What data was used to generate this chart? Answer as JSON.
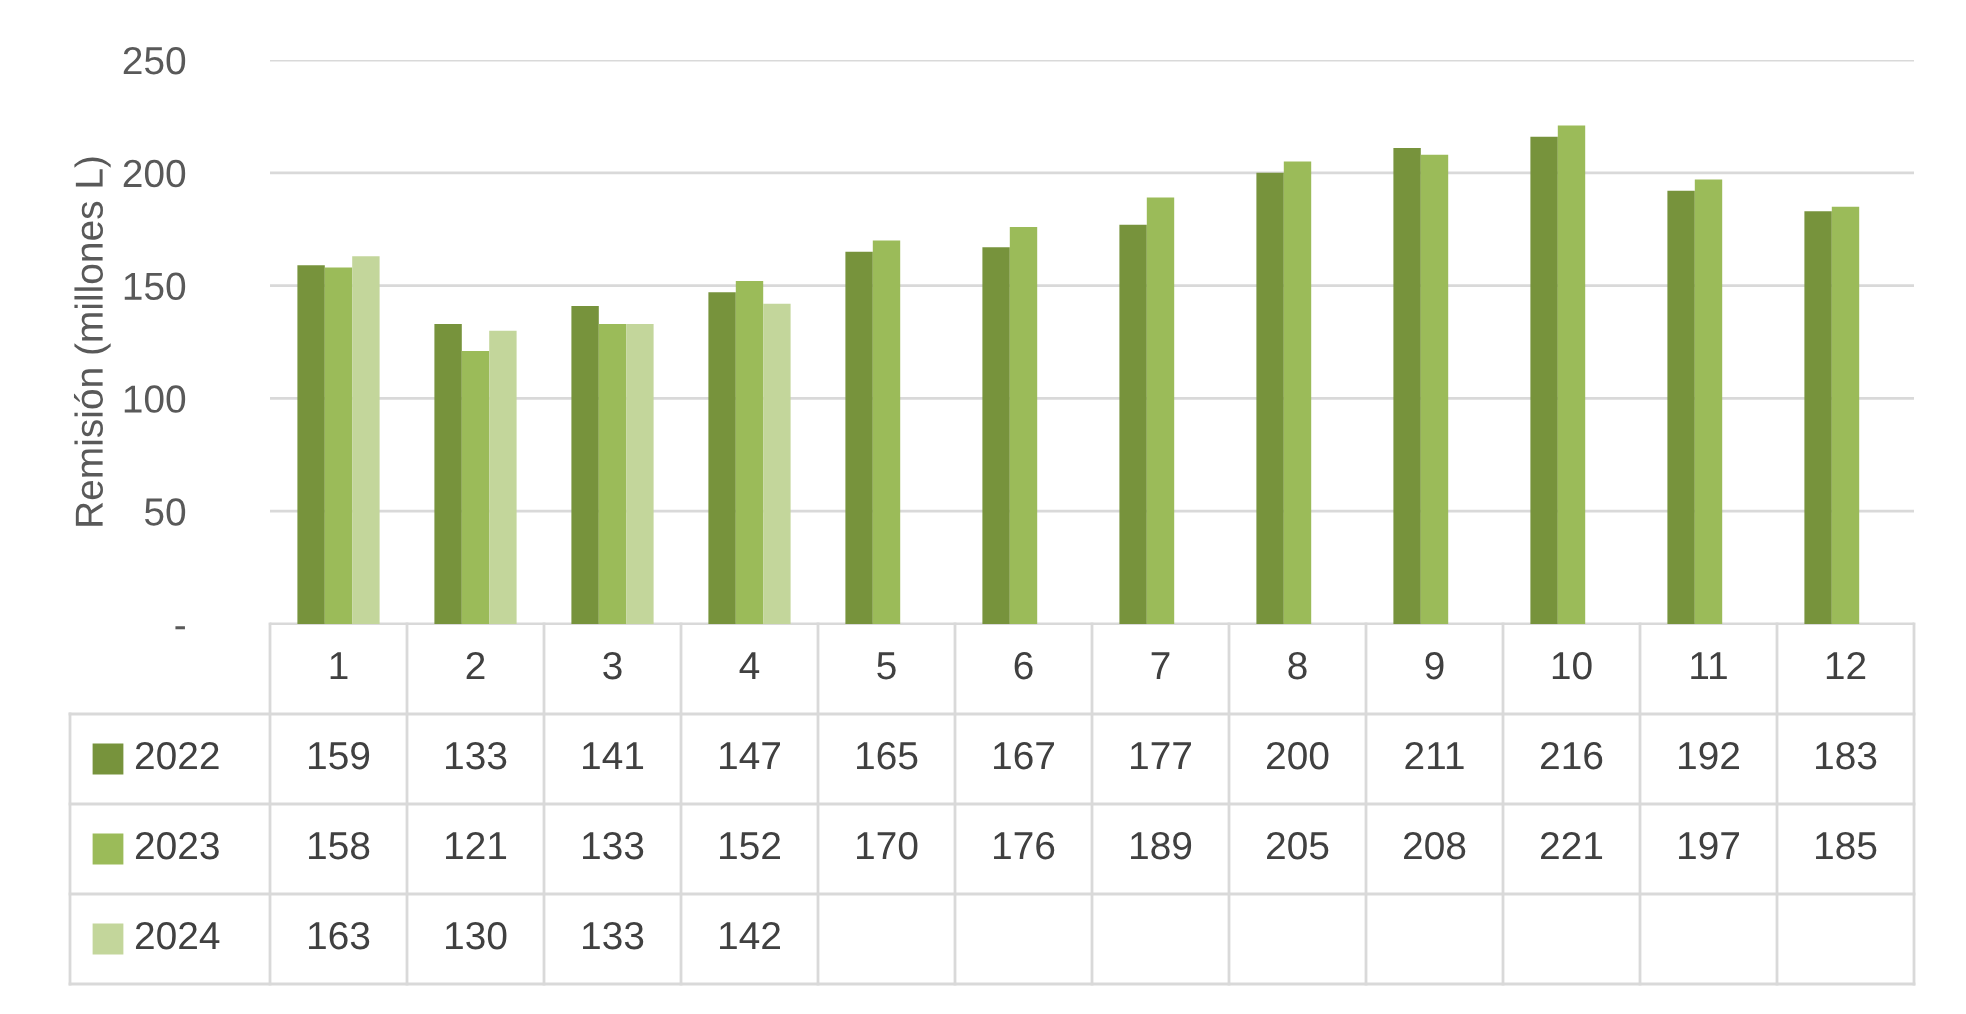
{
  "chart_data": {
    "type": "bar",
    "ylabel": "Remisión (millones L)",
    "categories": [
      "1",
      "2",
      "3",
      "4",
      "5",
      "6",
      "7",
      "8",
      "9",
      "10",
      "11",
      "12"
    ],
    "series": [
      {
        "name": "2022",
        "color": "#77933c",
        "values": [
          159,
          133,
          141,
          147,
          165,
          167,
          177,
          200,
          211,
          216,
          192,
          183
        ]
      },
      {
        "name": "2023",
        "color": "#9bbb59",
        "values": [
          158,
          121,
          133,
          152,
          170,
          176,
          189,
          205,
          208,
          221,
          197,
          185
        ]
      },
      {
        "name": "2024",
        "color": "#c3d69b",
        "values": [
          163,
          130,
          133,
          142,
          null,
          null,
          null,
          null,
          null,
          null,
          null,
          null
        ]
      }
    ],
    "ylim": [
      0,
      250
    ],
    "yticks": [
      {
        "value": 0,
        "label": "-"
      },
      50,
      100,
      150,
      200,
      250
    ],
    "grid": "y",
    "legend": "bottom",
    "data_labels": true
  }
}
